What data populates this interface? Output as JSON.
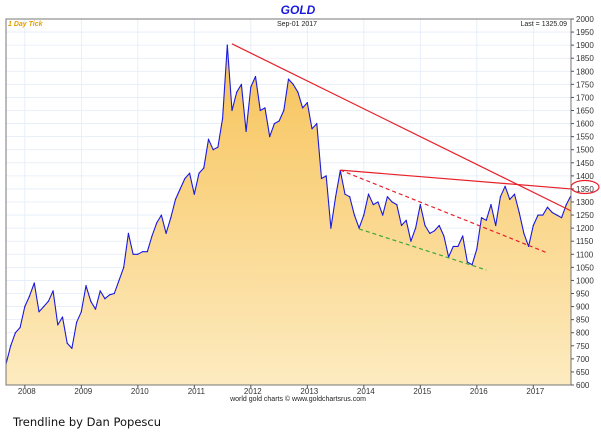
{
  "chart_data": {
    "type": "area",
    "title": "GOLD",
    "period_label": "1 Day Tick",
    "date_label": "Sep-01  2017",
    "last_label": "Last = 1325.09",
    "source": "world gold charts © www.goldchartsrus.com",
    "caption": "Trendline by Dan Popescu",
    "highlight_level": "1350",
    "ylim": [
      600,
      2000
    ],
    "y_ticks": [
      600,
      650,
      700,
      750,
      800,
      850,
      900,
      950,
      1000,
      1050,
      1100,
      1150,
      1200,
      1250,
      1300,
      1350,
      1400,
      1450,
      1500,
      1550,
      1600,
      1650,
      1700,
      1750,
      1800,
      1850,
      1900,
      1950,
      2000
    ],
    "x_ticks": [
      "2008",
      "2009",
      "2010",
      "2011",
      "2012",
      "2013",
      "2014",
      "2015",
      "2016",
      "2017"
    ],
    "grid": true,
    "colors": {
      "line": "#1a1adf",
      "fill_top": "#f7c257",
      "fill_bottom": "#fdebc0",
      "trend": "#e8202a",
      "support": "#3aa83a",
      "title": "#1a1adf",
      "period": "#e0a000"
    },
    "series": [
      {
        "x": [
          "2007-09",
          "2007-10",
          "2007-11",
          "2007-12",
          "2008-01",
          "2008-02",
          "2008-03",
          "2008-04",
          "2008-05",
          "2008-06",
          "2008-07",
          "2008-08",
          "2008-09",
          "2008-10",
          "2008-11",
          "2008-12",
          "2009-01",
          "2009-02",
          "2009-03",
          "2009-04",
          "2009-05",
          "2009-06",
          "2009-07",
          "2009-08",
          "2009-09",
          "2009-10",
          "2009-11",
          "2009-12",
          "2010-01",
          "2010-02",
          "2010-03",
          "2010-04",
          "2010-05",
          "2010-06",
          "2010-07",
          "2010-08",
          "2010-09",
          "2010-10",
          "2010-11",
          "2010-12",
          "2011-01",
          "2011-02",
          "2011-03",
          "2011-04",
          "2011-05",
          "2011-06",
          "2011-07",
          "2011-08",
          "2011-09",
          "2011-10",
          "2011-11",
          "2011-12",
          "2012-01",
          "2012-02",
          "2012-03",
          "2012-04",
          "2012-05",
          "2012-06",
          "2012-07",
          "2012-08",
          "2012-09",
          "2012-10",
          "2012-11",
          "2012-12",
          "2013-01",
          "2013-02",
          "2013-03",
          "2013-04",
          "2013-05",
          "2013-06",
          "2013-07",
          "2013-08",
          "2013-09",
          "2013-10",
          "2013-11",
          "2013-12",
          "2014-01",
          "2014-02",
          "2014-03",
          "2014-04",
          "2014-05",
          "2014-06",
          "2014-07",
          "2014-08",
          "2014-09",
          "2014-10",
          "2014-11",
          "2014-12",
          "2015-01",
          "2015-02",
          "2015-03",
          "2015-04",
          "2015-05",
          "2015-06",
          "2015-07",
          "2015-08",
          "2015-09",
          "2015-10",
          "2015-11",
          "2015-12",
          "2016-01",
          "2016-02",
          "2016-03",
          "2016-04",
          "2016-05",
          "2016-06",
          "2016-07",
          "2016-08",
          "2016-09",
          "2016-10",
          "2016-11",
          "2016-12",
          "2017-01",
          "2017-02",
          "2017-03",
          "2017-04",
          "2017-05",
          "2017-06",
          "2017-07",
          "2017-08",
          "2017-09"
        ],
        "y": [
          680,
          750,
          800,
          820,
          900,
          940,
          990,
          880,
          900,
          920,
          960,
          830,
          860,
          760,
          740,
          840,
          880,
          980,
          920,
          890,
          960,
          930,
          945,
          950,
          1000,
          1050,
          1180,
          1100,
          1100,
          1110,
          1110,
          1170,
          1220,
          1250,
          1180,
          1240,
          1310,
          1350,
          1390,
          1410,
          1330,
          1410,
          1430,
          1540,
          1500,
          1510,
          1620,
          1900,
          1650,
          1720,
          1750,
          1570,
          1740,
          1780,
          1650,
          1660,
          1550,
          1600,
          1610,
          1650,
          1770,
          1750,
          1720,
          1660,
          1680,
          1580,
          1600,
          1390,
          1400,
          1200,
          1320,
          1420,
          1330,
          1320,
          1250,
          1200,
          1250,
          1330,
          1290,
          1300,
          1250,
          1320,
          1300,
          1290,
          1210,
          1230,
          1150,
          1200,
          1290,
          1210,
          1180,
          1190,
          1210,
          1170,
          1090,
          1130,
          1130,
          1170,
          1070,
          1060,
          1120,
          1240,
          1230,
          1290,
          1210,
          1320,
          1360,
          1310,
          1330,
          1260,
          1180,
          1130,
          1210,
          1250,
          1250,
          1280,
          1260,
          1250,
          1240,
          1290,
          1325
        ]
      }
    ],
    "trendlines": [
      {
        "style": "solid",
        "color": "trend",
        "from": [
          "2011-09",
          1905
        ],
        "to": [
          "2017-09",
          1266
        ]
      },
      {
        "style": "solid",
        "color": "trend",
        "from": [
          "2013-08",
          1422
        ],
        "to": [
          "2017-09",
          1350
        ]
      },
      {
        "style": "dashed",
        "color": "trend",
        "from": [
          "2013-08",
          1422
        ],
        "to": [
          "2017-04",
          1105
        ]
      },
      {
        "style": "dashed",
        "color": "support",
        "from": [
          "2013-12",
          1197
        ],
        "to": [
          "2016-03",
          1040
        ]
      }
    ]
  }
}
